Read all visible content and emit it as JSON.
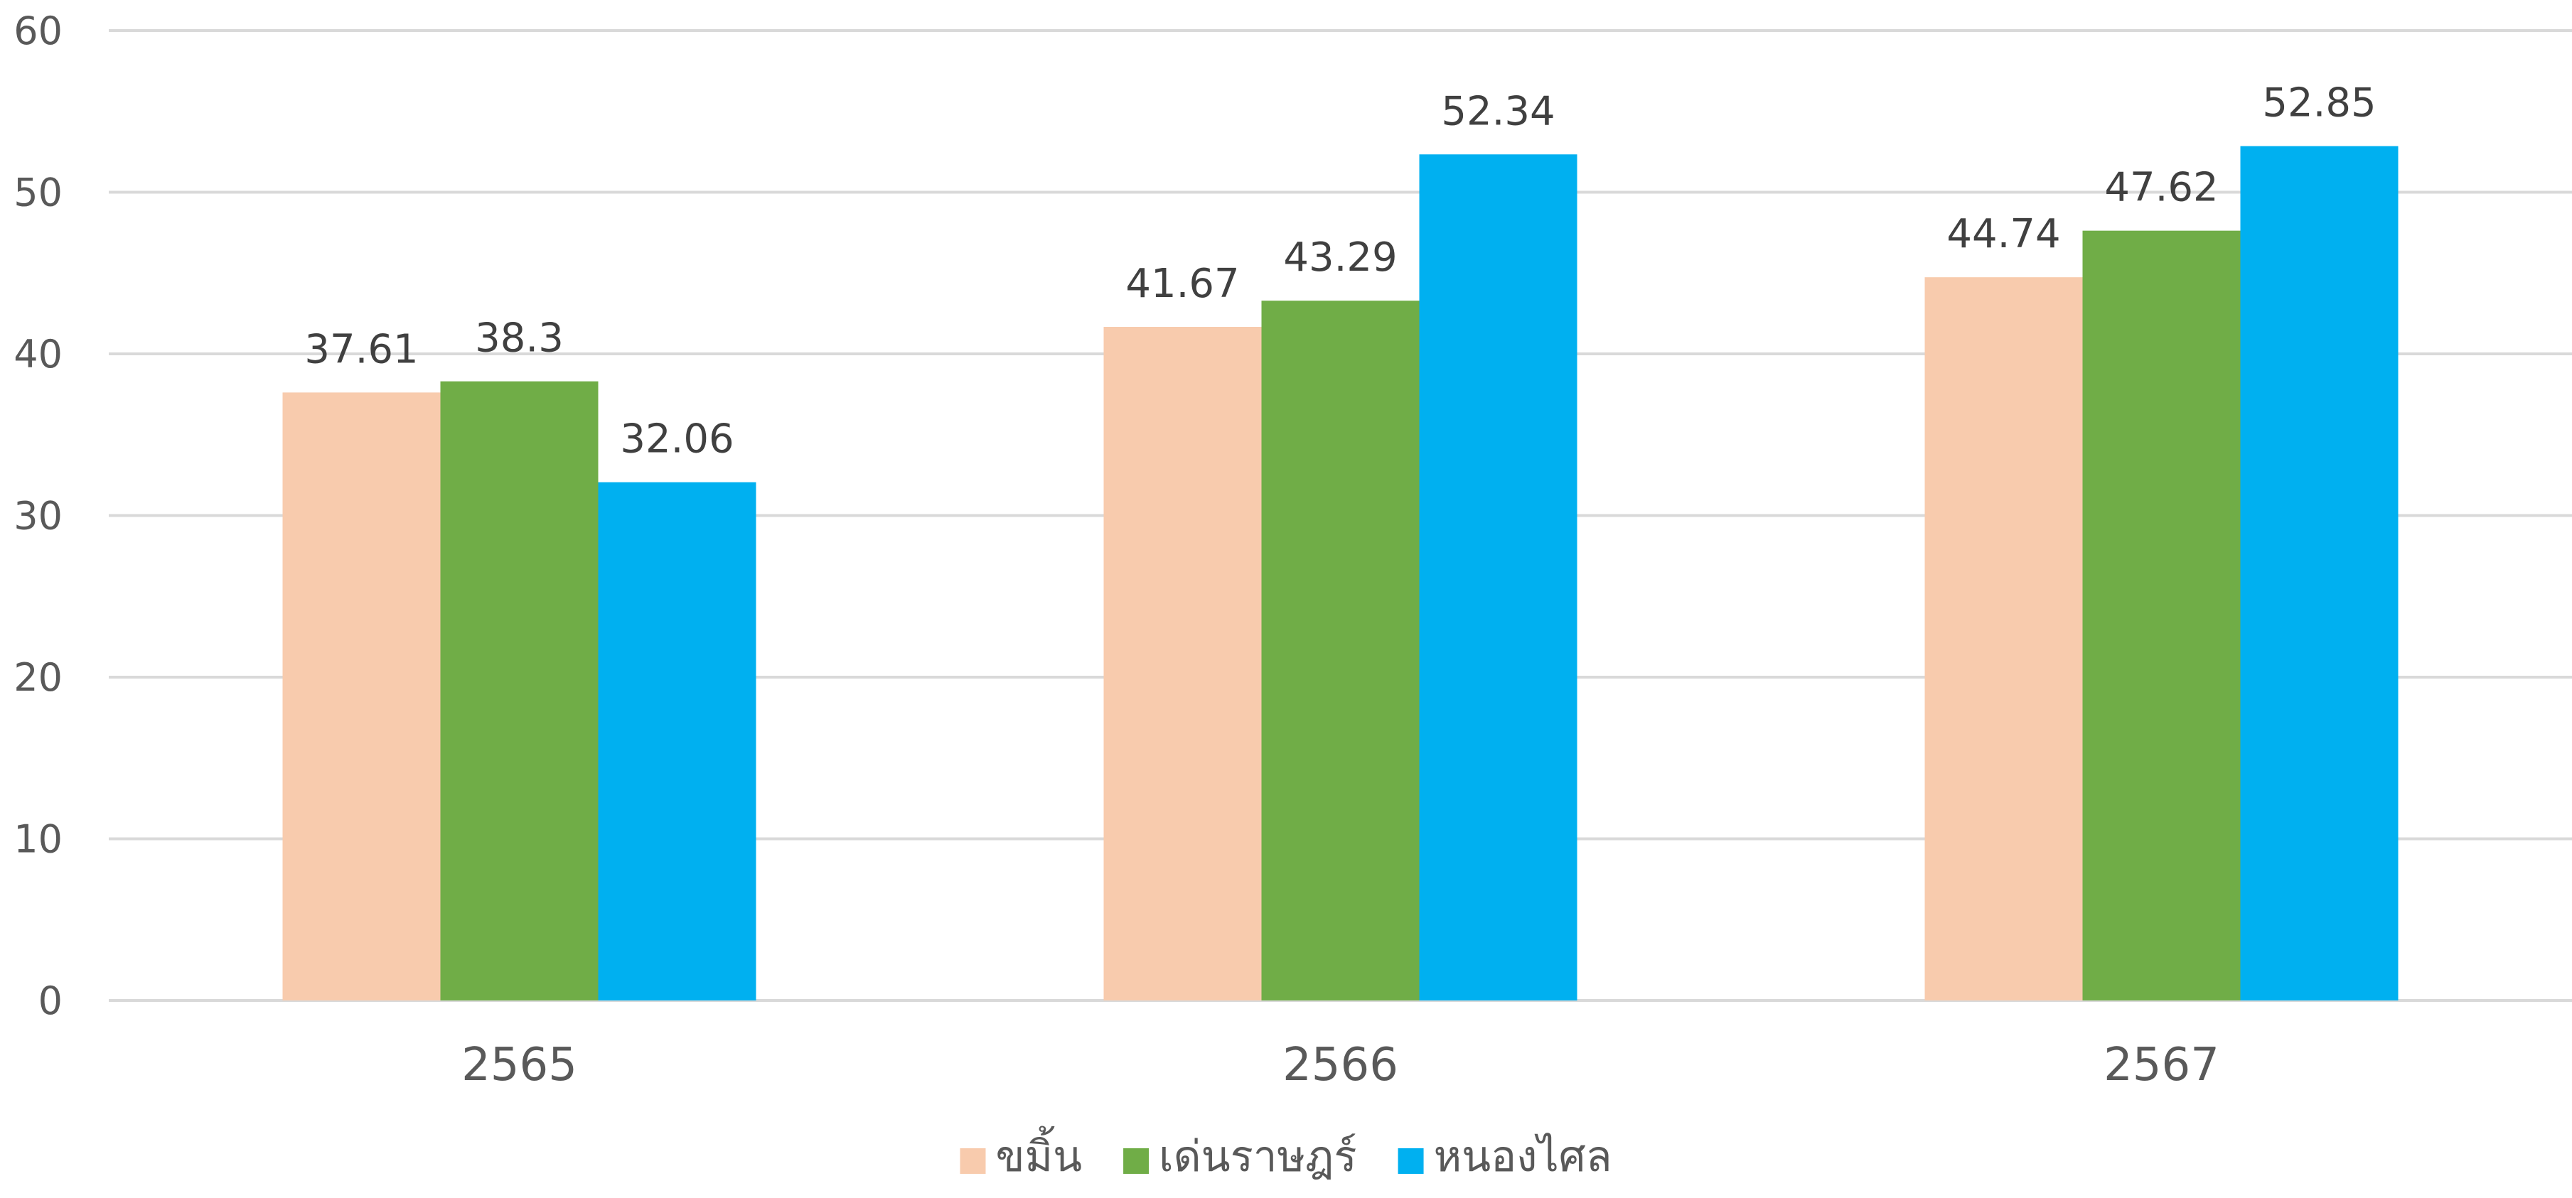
{
  "chart_data": {
    "type": "bar",
    "title": "",
    "xlabel": "",
    "ylabel": "",
    "categories": [
      "2565",
      "2566",
      "2567"
    ],
    "series": [
      {
        "name": "ขมิ้น",
        "color": "#F8CBAD",
        "values": [
          37.61,
          41.67,
          44.74
        ]
      },
      {
        "name": "เด่นราษฎร์",
        "color": "#70AD47",
        "values": [
          38.3,
          43.29,
          47.62
        ]
      },
      {
        "name": "หนองไศล",
        "color": "#00B0F0",
        "values": [
          32.06,
          52.34,
          52.85
        ]
      }
    ],
    "ylim": [
      0,
      60
    ],
    "yticks": [
      0,
      10,
      20,
      30,
      40,
      50,
      60
    ],
    "grid": true,
    "legend_position": "bottom"
  }
}
